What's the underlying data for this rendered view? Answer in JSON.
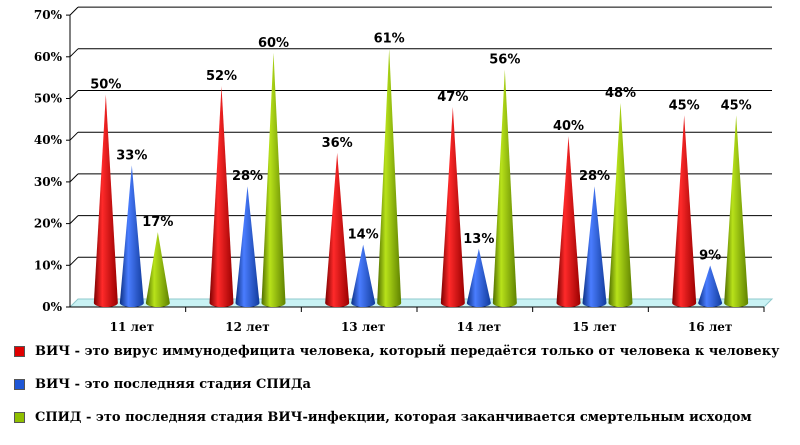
{
  "chart_data": {
    "type": "bar",
    "categories": [
      "11 лет",
      "12 лет",
      "13 лет",
      "14 лет",
      "15 лет",
      "16 лет"
    ],
    "series": [
      {
        "values": [
          50,
          52,
          36,
          47,
          40,
          45
        ],
        "color": "#e00000"
      },
      {
        "values": [
          33,
          28,
          14,
          13,
          28,
          9
        ],
        "color": "#1f57d6"
      },
      {
        "values": [
          17,
          60,
          61,
          56,
          48,
          45
        ],
        "color": "#8fbf00"
      }
    ],
    "value_labels": [
      [
        "50%",
        "52%",
        "36%",
        "47%",
        "40%",
        "45%"
      ],
      [
        "33%",
        "28%",
        "14%",
        "13%",
        "28%",
        "9%"
      ],
      [
        "17%",
        "60%",
        "61%",
        "56%",
        "48%",
        "45%"
      ]
    ],
    "yticks": [
      "0%",
      "10%",
      "20%",
      "30%",
      "40%",
      "50%",
      "60%",
      "70%"
    ],
    "ylim": [
      0,
      70
    ],
    "grid": true,
    "bar_shape": "cone",
    "legend_position": "bottom"
  },
  "legend": [
    {
      "text": "ВИЧ - это вирус иммунодефицита человека, который передаётся только от человека к человеку",
      "color": "#e00000"
    },
    {
      "text": "ВИЧ - это последняя стадия СПИДа",
      "color": "#1f57d6"
    },
    {
      "text": "СПИД - это последняя стадия ВИЧ-инфекции, которая заканчивается смертельным исходом",
      "color": "#8fbf00"
    }
  ]
}
